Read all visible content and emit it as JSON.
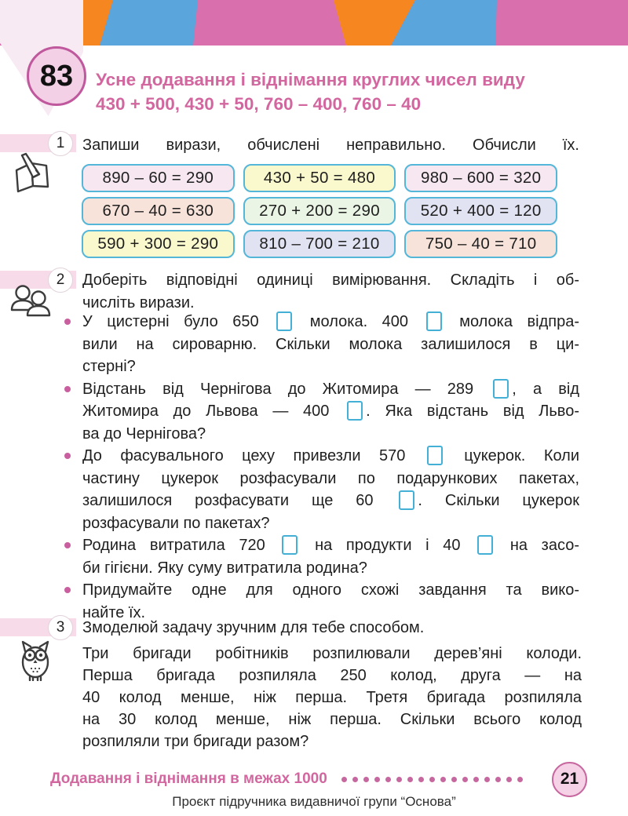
{
  "page": {
    "lesson_number": "83",
    "title_line1": "Усне додавання і віднімання круглих чисел виду",
    "title_line2": "430 + 500, 430 + 50, 760 – 400, 760 – 40"
  },
  "colors": {
    "accent_pink": "#d2679f",
    "band_pink": "#d96fad",
    "band_orange": "#f6861f",
    "band_blue": "#5aa5db",
    "box_border_cyan": "#54b6d8"
  },
  "tasks": [
    {
      "number": "1",
      "icon": "notebook-pencil-icon",
      "heading_lines": [
        "Запиши вирази, обчислені неправильно. Обчисли їх."
      ],
      "expressions": [
        {
          "text": "890 – 60 = 290",
          "bg": "#f6e7f1"
        },
        {
          "text": "430 + 50 = 480",
          "bg": "#faf8cd"
        },
        {
          "text": "980 – 600 = 320",
          "bg": "#f6e7f1"
        },
        {
          "text": "670 – 40 = 630",
          "bg": "#f8e3da"
        },
        {
          "text": "270 + 200 = 290",
          "bg": "#eaf5e5"
        },
        {
          "text": "520 + 400 = 120",
          "bg": "#e1e3f3"
        },
        {
          "text": "590 + 300 = 290",
          "bg": "#faf8cd"
        },
        {
          "text": "810 – 700 = 210",
          "bg": "#e1e3f3"
        },
        {
          "text": "750 – 40 = 710",
          "bg": "#f8e3da"
        }
      ]
    },
    {
      "number": "2",
      "icon": "pair-work-icon",
      "heading_lines": [
        "Доберіть відповідні одиниці вимірювання. Складіть і об-",
        "числіть вирази."
      ],
      "bullets": [
        {
          "lines": [
            "У цистерні було 650 □ молока. 400 □ молока відпра-",
            "вили на сироварню. Скільки молока залишилося в ци-",
            "стерні?"
          ]
        },
        {
          "lines": [
            "Відстань від Чернігова до Житомира — 289 □, а від",
            "Житомира до Львова — 400 □. Яка відстань від Льво-",
            "ва до Чернігова?"
          ]
        },
        {
          "lines": [
            "До фасувального цеху привезли 570 □ цукерок. Коли",
            "частину цукерок розфасували по подарункових пакетах,",
            "залишилося розфасувати ще 60 □. Скільки цукерок",
            "розфасували по пакетах?"
          ]
        },
        {
          "lines": [
            "Родина витратила 720 □ на продукти і 40 □ на засо-",
            "би гігієни. Яку суму витратила родина?"
          ]
        },
        {
          "lines": [
            "Придумайте одне для одного схожі завдання та вико-",
            "найте їх."
          ]
        }
      ]
    },
    {
      "number": "3",
      "icon": "owl-icon",
      "heading_lines": [
        "Змоделюй задачу зручним для тебе способом."
      ],
      "body_lines": [
        "Три бригади робітників розпилювали дерев’яні колоди.",
        "Перша бригада розпиляла 250 колод, друга — на",
        "40 колод менше, ніж перша. Третя бригада розпиляла",
        "на 30 колод менше, ніж перша. Скільки всього колод",
        "розпиляли три бригади разом?"
      ]
    }
  ],
  "footer": {
    "section_label": "Додавання і віднімання в межах 1000",
    "dots_count": 17,
    "page_number": "21",
    "credit": "Проєкт підручника видавничої групи “Основа”"
  }
}
